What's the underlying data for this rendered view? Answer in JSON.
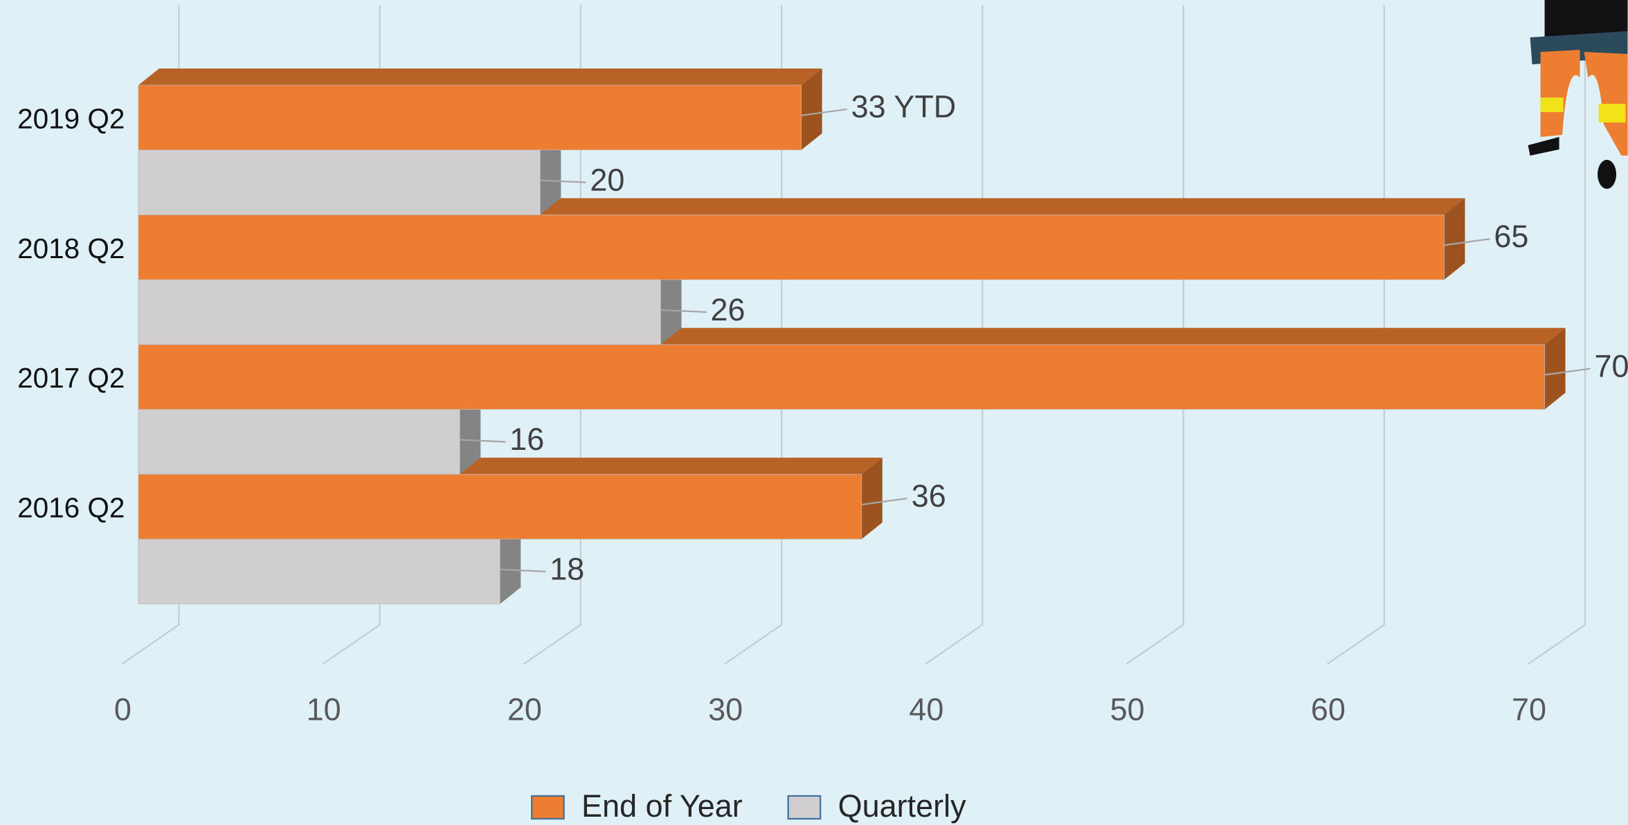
{
  "chart_data": {
    "type": "bar3d_horizontal",
    "categories": [
      "2016 Q2",
      "2017 Q2",
      "2018 Q2",
      "2019 Q2"
    ],
    "series": [
      {
        "name": "End of Year",
        "color": "#ED7D31",
        "values": [
          36,
          70,
          65,
          33
        ],
        "value_labels": [
          "36",
          "70",
          "65",
          "33 YTD"
        ]
      },
      {
        "name": "Quarterly",
        "color": "#D0CECE",
        "values": [
          18,
          16,
          26,
          20
        ]
      }
    ],
    "xlim": [
      0,
      70
    ],
    "xticks": [
      0,
      10,
      20,
      30,
      40,
      50,
      60,
      70
    ],
    "grid": true,
    "legend": "bottom"
  }
}
